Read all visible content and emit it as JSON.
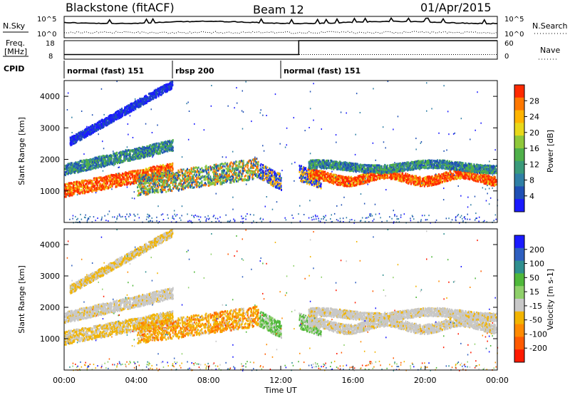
{
  "header": {
    "title_left": "Blackstone (fitACF)",
    "title_mid": "Beam 12",
    "title_right": "01/Apr/2015"
  },
  "colors": {
    "power": [
      "#1a1aff",
      "#1f4fb5",
      "#2f7fa5",
      "#3a9a7a",
      "#4fb04a",
      "#8fc83a",
      "#e8d81a",
      "#ffb400",
      "#ff7800",
      "#ff2a00"
    ],
    "velocity": [
      "#1a1aff",
      "#2e5fc0",
      "#2f8f8f",
      "#4fb83a",
      "#8fd06a",
      "#c8c8c8",
      "#f2b400",
      "#ff8a00",
      "#ff5a00",
      "#ff1a00"
    ],
    "noise": "#000000"
  },
  "chart_data": [
    {
      "type": "line",
      "panel": "noise",
      "left_label": "N.Sky",
      "right_label": "N.Search",
      "y_ticks": [
        "10^5",
        "10^0"
      ],
      "y_ticks_right": [
        "10^5",
        "10^0"
      ]
    },
    {
      "type": "line",
      "panel": "frequency",
      "left_label_top": "Freq.",
      "left_label_bottom": "[MHz]",
      "right_label": "Nave",
      "y_ticks": [
        "18",
        "8"
      ],
      "y_ticks_right": [
        "60",
        "0"
      ],
      "nave": {
        "x": [
          0,
          13.0,
          13.0,
          24
        ],
        "y": [
          15,
          15,
          60,
          60
        ]
      },
      "freq": {
        "x": [
          0,
          24
        ],
        "y": [
          10.5,
          10.5
        ]
      }
    },
    {
      "type": "table",
      "panel": "cpid",
      "label": "CPID",
      "segments": [
        {
          "start": 0,
          "end": 6.0,
          "name": "normal (fast) 151"
        },
        {
          "start": 6.0,
          "end": 12.0,
          "name": "rbsp 200"
        },
        {
          "start": 12.0,
          "end": 24,
          "name": "normal (fast) 151"
        }
      ]
    },
    {
      "type": "heatmap",
      "panel": "power",
      "ylabel": "Slant Range [km]",
      "ylim": [
        0,
        4500
      ],
      "y_ticks": [
        1000,
        2000,
        3000,
        4000
      ],
      "colorbar_label": "Power [dB]",
      "colorbar_ticks": [
        "4",
        "8",
        "12",
        "16",
        "20",
        "24",
        "28"
      ],
      "colorbar_range": [
        0,
        30
      ]
    },
    {
      "type": "heatmap",
      "panel": "velocity",
      "ylabel": "Slant Range [km]",
      "ylim": [
        0,
        4500
      ],
      "y_ticks": [
        1000,
        2000,
        3000,
        4000
      ],
      "colorbar_label": "Velocity [m s-1]",
      "colorbar_ticks": [
        "200",
        "100",
        "50",
        "15",
        "-15",
        "-50",
        "-100",
        "-200"
      ]
    }
  ],
  "xaxis": {
    "label": "Time UT",
    "ticks": [
      "00:00",
      "04:00",
      "08:00",
      "12:00",
      "16:00",
      "20:00",
      "00:00"
    ],
    "range": [
      0,
      24
    ]
  }
}
